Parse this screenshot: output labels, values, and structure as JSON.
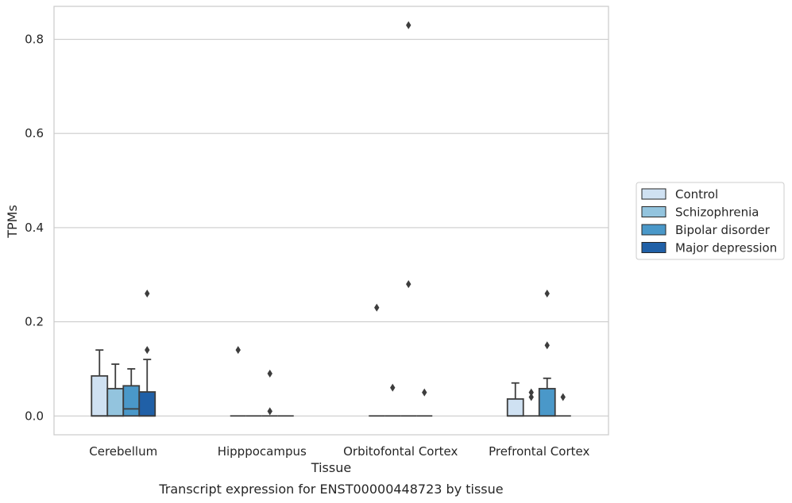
{
  "chart_data": {
    "type": "box",
    "title": "",
    "caption": "Transcript expression for ENST00000448723 by tissue",
    "xlabel": "Tissue",
    "ylabel": "TPMs",
    "ylim": [
      -0.04,
      0.87
    ],
    "yticks": [
      "0.0",
      "0.2",
      "0.4",
      "0.6",
      "0.8"
    ],
    "ytick_values": [
      0.0,
      0.2,
      0.4,
      0.6,
      0.8
    ],
    "grid": "horizontal",
    "legend_position": "right",
    "categories": [
      "Cerebellum",
      "Hipppocampus",
      "Orbitofontal Cortex",
      "Prefrontal Cortex"
    ],
    "series": [
      {
        "name": "Control",
        "color": "#cfe1f2",
        "boxes": [
          {
            "q1": 0.0,
            "median": 0.0,
            "q3": 0.085,
            "whisker_low": 0.0,
            "whisker_high": 0.14,
            "outliers": []
          },
          {
            "q1": 0.0,
            "median": 0.0,
            "q3": 0.0,
            "whisker_low": 0.0,
            "whisker_high": 0.0,
            "outliers": [
              0.14
            ]
          },
          {
            "q1": 0.0,
            "median": 0.0,
            "q3": 0.0,
            "whisker_low": 0.0,
            "whisker_high": 0.0,
            "outliers": [
              0.23
            ]
          },
          {
            "q1": 0.0,
            "median": 0.0,
            "q3": 0.036,
            "whisker_low": 0.0,
            "whisker_high": 0.07,
            "outliers": []
          }
        ]
      },
      {
        "name": "Schizophrenia",
        "color": "#93c4de",
        "boxes": [
          {
            "q1": 0.0,
            "median": 0.0,
            "q3": 0.058,
            "whisker_low": 0.0,
            "whisker_high": 0.11,
            "outliers": []
          },
          {
            "q1": 0.0,
            "median": 0.0,
            "q3": 0.0,
            "whisker_low": 0.0,
            "whisker_high": 0.0,
            "outliers": []
          },
          {
            "q1": 0.0,
            "median": 0.0,
            "q3": 0.0,
            "whisker_low": 0.0,
            "whisker_high": 0.0,
            "outliers": [
              0.06
            ]
          },
          {
            "q1": 0.0,
            "median": 0.0,
            "q3": 0.0,
            "whisker_low": 0.0,
            "whisker_high": 0.0,
            "outliers": [
              0.04,
              0.05
            ]
          }
        ]
      },
      {
        "name": "Bipolar disorder",
        "color": "#4a98c9",
        "boxes": [
          {
            "q1": 0.0,
            "median": 0.015,
            "q3": 0.064,
            "whisker_low": 0.0,
            "whisker_high": 0.1,
            "outliers": []
          },
          {
            "q1": 0.0,
            "median": 0.0,
            "q3": 0.0,
            "whisker_low": 0.0,
            "whisker_high": 0.0,
            "outliers": [
              0.01,
              0.09
            ]
          },
          {
            "q1": 0.0,
            "median": 0.0,
            "q3": 0.0,
            "whisker_low": 0.0,
            "whisker_high": 0.0,
            "outliers": [
              0.28,
              0.83
            ]
          },
          {
            "q1": 0.0,
            "median": 0.0,
            "q3": 0.058,
            "whisker_low": 0.0,
            "whisker_high": 0.08,
            "outliers": [
              0.15,
              0.26
            ]
          }
        ]
      },
      {
        "name": "Major depression",
        "color": "#2060a7",
        "boxes": [
          {
            "q1": 0.0,
            "median": 0.0,
            "q3": 0.051,
            "whisker_low": 0.0,
            "whisker_high": 0.12,
            "outliers": [
              0.14,
              0.26
            ]
          },
          {
            "q1": 0.0,
            "median": 0.0,
            "q3": 0.0,
            "whisker_low": 0.0,
            "whisker_high": 0.0,
            "outliers": []
          },
          {
            "q1": 0.0,
            "median": 0.0,
            "q3": 0.0,
            "whisker_low": 0.0,
            "whisker_high": 0.0,
            "outliers": [
              0.05
            ]
          },
          {
            "q1": 0.0,
            "median": 0.0,
            "q3": 0.0,
            "whisker_low": 0.0,
            "whisker_high": 0.0,
            "outliers": [
              0.04
            ]
          }
        ]
      }
    ]
  }
}
